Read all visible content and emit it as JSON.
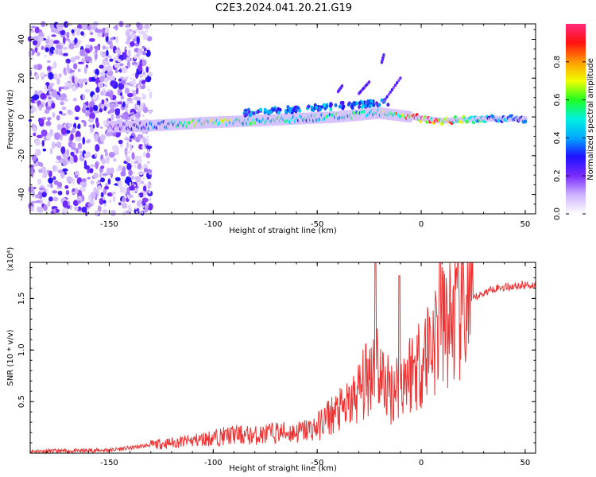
{
  "title": "C2E3.2024.041.20.21.G19",
  "chart_data": [
    {
      "type": "heatmap",
      "xlabel": "Height of straight line (km)",
      "ylabel": "Frequency (Hz)",
      "xlim": [
        -188,
        55
      ],
      "ylim": [
        -50,
        48
      ],
      "x_ticks": [
        -150,
        -100,
        -50,
        0,
        50
      ],
      "y_ticks": [
        -40,
        -20,
        0,
        20,
        40
      ],
      "colorbar": {
        "label": "Normalized spectral amplitude",
        "range": [
          0,
          1
        ],
        "ticks": [
          "0.0",
          "0.2",
          "0.4",
          "0.6",
          "0.8"
        ],
        "colors": [
          "#ffffff",
          "#cdb4ff",
          "#7a2cff",
          "#1f10ff",
          "#00a8ff",
          "#00f0e0",
          "#20ff20",
          "#f0ff00",
          "#ff9a00",
          "#ff1010",
          "#ff2a7a"
        ]
      },
      "description_points": [
        {
          "x": -150,
          "y": -5,
          "amp": 0.15
        },
        {
          "x": -140,
          "y": -5,
          "amp": 0.3
        },
        {
          "x": -120,
          "y": -4,
          "amp": 0.45
        },
        {
          "x": -105,
          "y": -3,
          "amp": 0.75
        },
        {
          "x": -80,
          "y": -2,
          "amp": 0.55
        },
        {
          "x": -60,
          "y": -1,
          "amp": 0.5
        },
        {
          "x": -40,
          "y": 0,
          "amp": 0.55
        },
        {
          "x": -20,
          "y": 2,
          "amp": 0.6
        },
        {
          "x": -5,
          "y": 0,
          "amp": 0.9
        },
        {
          "x": 10,
          "y": -2,
          "amp": 0.9
        },
        {
          "x": 30,
          "y": -1,
          "amp": 0.5
        },
        {
          "x": 50,
          "y": -1,
          "amp": 0.35
        }
      ]
    },
    {
      "type": "line",
      "xlabel": "Height of straight line (km)",
      "ylabel": "SNR (10 * v/v)",
      "y_scale_note": "(x10⁴)",
      "xlim": [
        -188,
        55
      ],
      "ylim": [
        0,
        1.85
      ],
      "x_ticks": [
        -150,
        -100,
        -50,
        0,
        50
      ],
      "y_ticks": [
        "0.5",
        "1.0",
        "1.5"
      ],
      "series": [
        {
          "color": "#ee3333",
          "x": [
            -188,
            -170,
            -150,
            -140,
            -130,
            -120,
            -110,
            -100,
            -90,
            -80,
            -70,
            -60,
            -50,
            -45,
            -40,
            -35,
            -30,
            -25,
            -22,
            -20,
            -15,
            -10,
            -5,
            0,
            5,
            10,
            15,
            20,
            25,
            30,
            35,
            40,
            45,
            50,
            55
          ],
          "y": [
            0.02,
            0.02,
            0.03,
            0.05,
            0.08,
            0.1,
            0.12,
            0.15,
            0.18,
            0.17,
            0.2,
            0.2,
            0.25,
            0.35,
            0.4,
            0.45,
            0.6,
            0.75,
            1.0,
            0.75,
            0.6,
            0.7,
            0.8,
            0.9,
            1.1,
            1.2,
            1.3,
            1.4,
            1.5,
            1.55,
            1.6,
            1.61,
            1.62,
            1.63,
            1.63
          ]
        }
      ]
    }
  ]
}
